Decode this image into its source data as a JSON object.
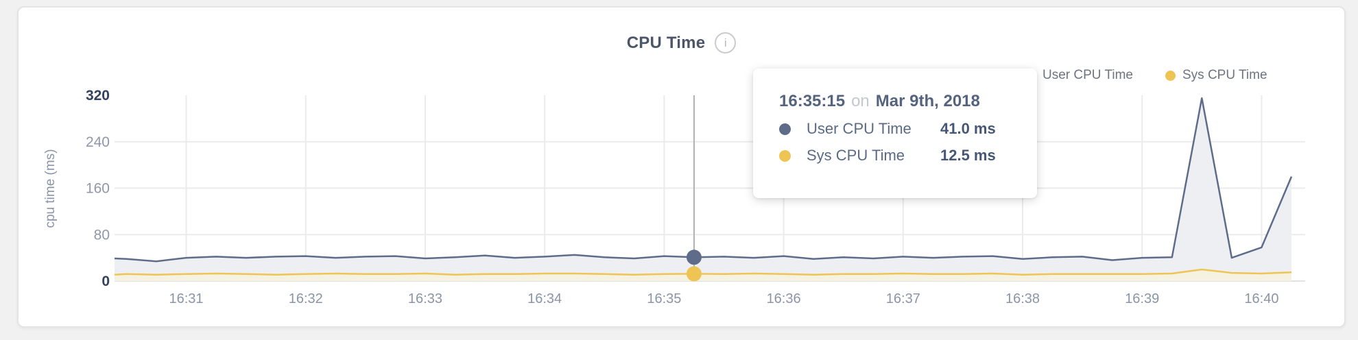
{
  "card": {
    "title": "CPU Time",
    "info_icon": "i"
  },
  "legend": {
    "items": [
      {
        "label": "User CPU Time",
        "color": "#5e6c8a"
      },
      {
        "label": "Sys CPU Time",
        "color": "#eec454"
      }
    ]
  },
  "tooltip": {
    "time": "16:35:15",
    "conjunction": "on",
    "date": "Mar 9th, 2018",
    "rows": [
      {
        "label": "User CPU Time",
        "value": "41.0 ms",
        "color": "#5e6c8a"
      },
      {
        "label": "Sys CPU Time",
        "value": "12.5 ms",
        "color": "#eec454"
      }
    ]
  },
  "chart_data": {
    "type": "area",
    "title": "CPU Time",
    "xlabel": "",
    "ylabel": "cpu time (ms)",
    "ylim": [
      0,
      320
    ],
    "yticks": [
      0,
      80,
      160,
      240,
      320
    ],
    "xticks": [
      "16:31",
      "16:32",
      "16:33",
      "16:34",
      "16:35",
      "16:36",
      "16:37",
      "16:38",
      "16:39",
      "16:40"
    ],
    "x_domain": [
      "16:30:24",
      "16:40:15"
    ],
    "grid": true,
    "legend_position": "top-right",
    "x": [
      "16:30:24",
      "16:30:30",
      "16:30:45",
      "16:31:00",
      "16:31:15",
      "16:31:30",
      "16:31:45",
      "16:32:00",
      "16:32:15",
      "16:32:30",
      "16:32:45",
      "16:33:00",
      "16:33:15",
      "16:33:30",
      "16:33:45",
      "16:34:00",
      "16:34:15",
      "16:34:30",
      "16:34:45",
      "16:35:00",
      "16:35:15",
      "16:35:30",
      "16:35:45",
      "16:36:00",
      "16:36:15",
      "16:36:30",
      "16:36:45",
      "16:37:00",
      "16:37:15",
      "16:37:30",
      "16:37:45",
      "16:38:00",
      "16:38:15",
      "16:38:30",
      "16:38:45",
      "16:39:00",
      "16:39:15",
      "16:39:30",
      "16:39:45",
      "16:40:00",
      "16:40:15"
    ],
    "series": [
      {
        "name": "User CPU Time",
        "color": "#5e6c8a",
        "fill": "#edeff3",
        "values": [
          39,
          38,
          34,
          40,
          42,
          40,
          42,
          43,
          40,
          42,
          43,
          39,
          41,
          44,
          40,
          42,
          45,
          41,
          39,
          43,
          41,
          42,
          40,
          43,
          38,
          41,
          39,
          42,
          40,
          42,
          43,
          38,
          41,
          42,
          36,
          40,
          41,
          315,
          40,
          58,
          180
        ]
      },
      {
        "name": "Sys CPU Time",
        "color": "#eec454",
        "fill": "#f6f2e2",
        "values": [
          11,
          12,
          11,
          12,
          13,
          12,
          11,
          12,
          13,
          12,
          12,
          13,
          11,
          12,
          12,
          13,
          13,
          12,
          11,
          12,
          12.5,
          12,
          13,
          12,
          11,
          12,
          12,
          13,
          12,
          12,
          13,
          11,
          12,
          12,
          12,
          12,
          13,
          20,
          14,
          13,
          15
        ]
      }
    ],
    "hover": {
      "time": "16:35:15",
      "values": [
        41.0,
        12.5
      ]
    },
    "colors": {
      "axis_label_strong": "#33425e",
      "axis_label_muted": "#8f98aa",
      "x_label": "#8b94a7",
      "gridline": "#ebebeb",
      "baseline": "#e2e2e2",
      "hover_line": "#b0b0b0"
    }
  }
}
